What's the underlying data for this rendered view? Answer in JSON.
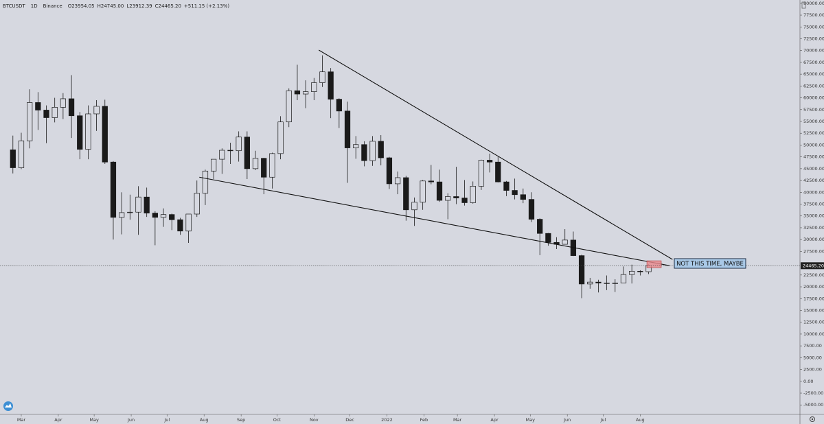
{
  "header": {
    "symbol": "BTCUSDT",
    "interval": "1D",
    "exchange": "Binance",
    "open": "O23954.05",
    "high": "H24745.00",
    "low": "L23912.39",
    "close": "C24465.20",
    "change": "+511.15 (+2.13%)"
  },
  "chart_data": {
    "type": "candlestick",
    "color": "#1a1a1a",
    "background": "#d6d8e0",
    "xlim": [
      -17.8,
      651.7
    ],
    "ylim": [
      -7000,
      80700
    ],
    "xticks": [
      {
        "value": 0,
        "label": "Mar"
      },
      {
        "value": 31,
        "label": "Apr"
      },
      {
        "value": 61,
        "label": "May"
      },
      {
        "value": 92,
        "label": "Jun"
      },
      {
        "value": 122,
        "label": "Jul"
      },
      {
        "value": 153,
        "label": "Aug"
      },
      {
        "value": 184,
        "label": "Sep"
      },
      {
        "value": 214,
        "label": "Oct"
      },
      {
        "value": 245,
        "label": "Nov"
      },
      {
        "value": 275,
        "label": "Dec"
      },
      {
        "value": 306,
        "label": "2022"
      },
      {
        "value": 337,
        "label": "Feb"
      },
      {
        "value": 365,
        "label": "Mar"
      },
      {
        "value": 396,
        "label": "Apr"
      },
      {
        "value": 426,
        "label": "May"
      },
      {
        "value": 457,
        "label": "Jun"
      },
      {
        "value": 487,
        "label": "Jul"
      },
      {
        "value": 518,
        "label": "Aug"
      }
    ],
    "yticks": [
      {
        "value": 80000,
        "label": "80000.00"
      },
      {
        "value": 77500,
        "label": "77500.00"
      },
      {
        "value": 75000,
        "label": "75000.00"
      },
      {
        "value": 72500,
        "label": "72500.00"
      },
      {
        "value": 70000,
        "label": "70000.00"
      },
      {
        "value": 67500,
        "label": "67500.00"
      },
      {
        "value": 65000,
        "label": "65000.00"
      },
      {
        "value": 62500,
        "label": "62500.00"
      },
      {
        "value": 60000,
        "label": "60000.00"
      },
      {
        "value": 57500,
        "label": "57500.00"
      },
      {
        "value": 55000,
        "label": "55000.00"
      },
      {
        "value": 52500,
        "label": "52500.00"
      },
      {
        "value": 50000,
        "label": "50000.00"
      },
      {
        "value": 47500,
        "label": "47500.00"
      },
      {
        "value": 45000,
        "label": "45000.00"
      },
      {
        "value": 42500,
        "label": "42500.00"
      },
      {
        "value": 40000,
        "label": "40000.00"
      },
      {
        "value": 37500,
        "label": "37500.00"
      },
      {
        "value": 35000,
        "label": "35000.00"
      },
      {
        "value": 32500,
        "label": "32500.00"
      },
      {
        "value": 30000,
        "label": "30000.00"
      },
      {
        "value": 27500,
        "label": "27500.00"
      },
      {
        "value": 22500,
        "label": "22500.00"
      },
      {
        "value": 20000,
        "label": "20000.00"
      },
      {
        "value": 17500,
        "label": "17500.00"
      },
      {
        "value": 15000,
        "label": "15000.00"
      },
      {
        "value": 12500,
        "label": "12500.00"
      },
      {
        "value": 10000,
        "label": "10000.00"
      },
      {
        "value": 7500,
        "label": "7500.00"
      },
      {
        "value": 5000,
        "label": "5000.00"
      },
      {
        "value": 2500,
        "label": "2500.00"
      },
      {
        "value": 0,
        "label": "0.00"
      },
      {
        "value": -2500,
        "label": "-2500.00"
      },
      {
        "value": -5000,
        "label": "-5000.00"
      }
    ],
    "last_price": {
      "value": 24465.2,
      "label": "24465.20"
    },
    "x": [
      -7,
      0,
      7,
      14,
      21,
      28,
      35,
      42,
      49,
      56,
      63,
      70,
      77,
      84,
      91,
      98,
      105,
      112,
      119,
      126,
      133,
      140,
      147,
      154,
      161,
      168,
      175,
      182,
      189,
      196,
      203,
      210,
      217,
      224,
      231,
      238,
      245,
      252,
      259,
      266,
      273,
      280,
      287,
      294,
      301,
      308,
      315,
      322,
      329,
      336,
      343,
      350,
      357,
      364,
      371,
      378,
      385,
      392,
      399,
      406,
      413,
      420,
      427,
      434,
      441,
      448,
      455,
      462,
      469,
      476,
      483,
      490,
      497,
      504,
      511,
      518,
      525
    ],
    "open": [
      49000,
      45200,
      50900,
      59000,
      57400,
      55800,
      58000,
      59800,
      56200,
      49100,
      56600,
      58200,
      46400,
      34700,
      35700,
      35800,
      39000,
      35600,
      34700,
      35300,
      34200,
      31800,
      35400,
      39800,
      44500,
      47000,
      48900,
      48800,
      51700,
      45000,
      47200,
      43200,
      48200,
      54900,
      61500,
      60800,
      61300,
      63200,
      65500,
      59700,
      57200,
      49400,
      50100,
      46700,
      50800,
      47300,
      41800,
      43100,
      36300,
      37900,
      42400,
      42200,
      38300,
      39100,
      38800,
      37800,
      41300,
      46800,
      46400,
      42200,
      40400,
      39500,
      38500,
      34300,
      31300,
      29400,
      29000,
      29900,
      26600,
      20600,
      21000,
      20800,
      20800,
      20800,
      22600,
      23300,
      23200
    ],
    "high": [
      52000,
      52600,
      61800,
      61200,
      58400,
      60000,
      61000,
      64800,
      57000,
      58400,
      59500,
      59600,
      46600,
      40000,
      39500,
      41300,
      41000,
      36000,
      36600,
      35500,
      34600,
      35400,
      42500,
      44800,
      47000,
      49300,
      50500,
      52900,
      52900,
      48800,
      47300,
      48400,
      56100,
      62000,
      67000,
      63700,
      64200,
      69000,
      66300,
      59900,
      59200,
      51900,
      50800,
      51900,
      52100,
      47500,
      44400,
      43500,
      38900,
      42600,
      45800,
      44800,
      39800,
      45400,
      42600,
      42300,
      46900,
      48200,
      47500,
      42400,
      42900,
      40800,
      40000,
      34500,
      31400,
      30500,
      32200,
      31700,
      26800,
      21900,
      21500,
      22400,
      21600,
      24300,
      24700,
      23500,
      24745
    ],
    "low": [
      44000,
      44900,
      49300,
      53200,
      50400,
      54800,
      55500,
      51500,
      47000,
      47000,
      53000,
      46000,
      30000,
      31100,
      34200,
      31000,
      34800,
      28800,
      32700,
      32000,
      31000,
      29300,
      34800,
      37300,
      42800,
      43900,
      46000,
      46500,
      42800,
      44700,
      39600,
      40800,
      47000,
      53800,
      59500,
      57800,
      59500,
      62300,
      55700,
      53600,
      42000,
      47100,
      45500,
      45600,
      45700,
      40700,
      39600,
      34000,
      32900,
      36300,
      41700,
      38000,
      34300,
      37500,
      37200,
      37600,
      40500,
      44200,
      42100,
      39200,
      38500,
      37700,
      33700,
      26700,
      28700,
      28000,
      29200,
      26500,
      17600,
      19600,
      18800,
      19300,
      18900,
      20800,
      20700,
      22400,
      22700
    ],
    "close": [
      45200,
      50900,
      59000,
      57400,
      55800,
      58000,
      59800,
      56200,
      49100,
      56600,
      58200,
      46400,
      34700,
      35700,
      35800,
      39000,
      35600,
      34700,
      35300,
      34200,
      31800,
      35400,
      39800,
      44500,
      47000,
      48900,
      48800,
      51700,
      45000,
      47200,
      43200,
      48200,
      54900,
      61500,
      60800,
      61300,
      63200,
      65500,
      59700,
      57200,
      49400,
      50100,
      46700,
      50800,
      47300,
      41800,
      43100,
      36300,
      37900,
      42400,
      42200,
      38300,
      39100,
      38800,
      37800,
      41300,
      46800,
      46400,
      42200,
      40400,
      39500,
      38500,
      34300,
      31300,
      29400,
      29000,
      29900,
      26600,
      20600,
      21000,
      20800,
      20800,
      20800,
      22600,
      23300,
      23200,
      24465.2
    ],
    "trendlines": [
      {
        "x": [
          249,
          545
        ],
        "y": [
          70100,
          25800
        ]
      },
      {
        "x": [
          149,
          542.5
        ],
        "y": [
          43200,
          24480
        ]
      }
    ],
    "zone": {
      "x": [
        523.6,
        535.6
      ],
      "y": [
        24060,
        25510
      ],
      "color": "#e8888c"
    },
    "annotation": "NOT THIS TIME, MAYBE"
  }
}
